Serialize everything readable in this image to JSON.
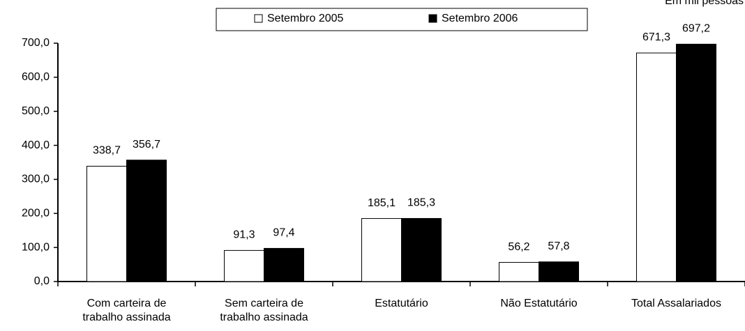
{
  "chart_data": {
    "type": "bar",
    "annotation": "Em mil pessoas",
    "categories": [
      "Com carteira de\ntrabalho assinada",
      "Sem carteira de\ntrabalho assinada",
      "Estatutário",
      "Não Estatutário",
      "Total Assalariados"
    ],
    "series": [
      {
        "name": "Setembro 2005",
        "color": "#ffffff",
        "values": [
          338.7,
          91.3,
          185.1,
          56.2,
          671.3
        ],
        "value_labels": [
          "338,7",
          "91,3",
          "185,1",
          "56,2",
          "671,3"
        ]
      },
      {
        "name": "Setembro 2006",
        "color": "#000000",
        "values": [
          356.7,
          97.4,
          185.3,
          57.8,
          697.2
        ],
        "value_labels": [
          "356,7",
          "97,4",
          "185,3",
          "57,8",
          "697,2"
        ]
      }
    ],
    "ylim": [
      0,
      700
    ],
    "yticks": [
      {
        "value": 0,
        "label": "0,0"
      },
      {
        "value": 100,
        "label": "100,0"
      },
      {
        "value": 200,
        "label": "200,0"
      },
      {
        "value": 300,
        "label": "300,0"
      },
      {
        "value": 400,
        "label": "400,0"
      },
      {
        "value": 500,
        "label": "500,0"
      },
      {
        "value": 600,
        "label": "600,0"
      },
      {
        "value": 700,
        "label": "700,0"
      }
    ],
    "legend": "top"
  }
}
